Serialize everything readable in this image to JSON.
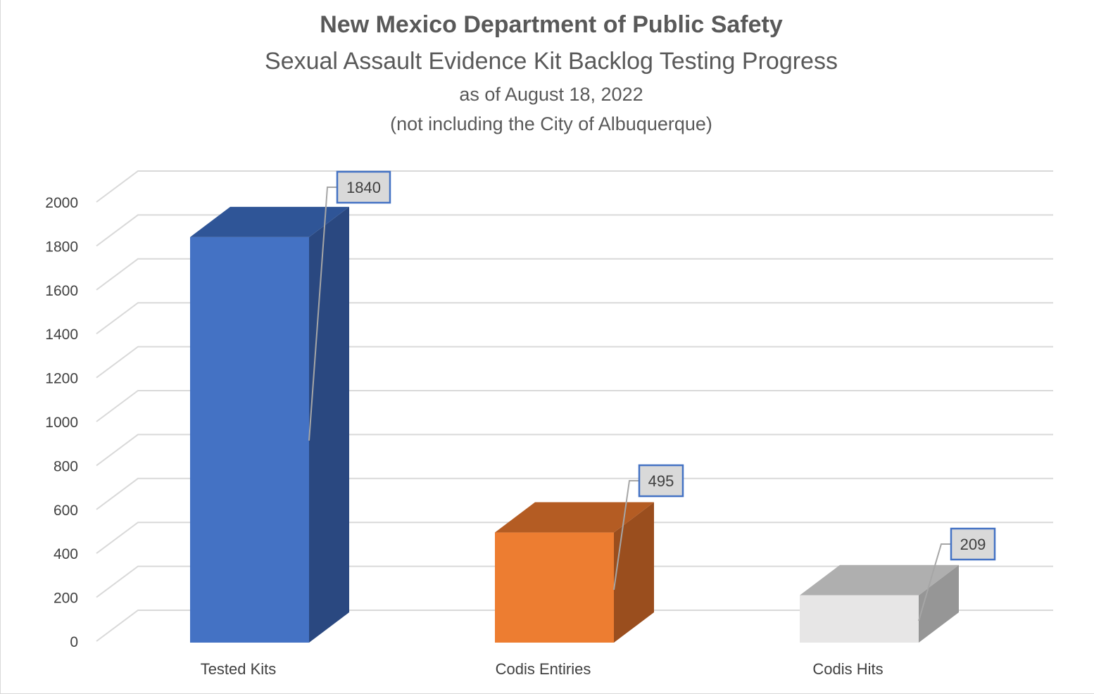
{
  "chart_data": {
    "type": "bar",
    "title": "New Mexico Department of Public Safety",
    "subtitle": "Sexual Assault Evidence Kit Backlog Testing Progress",
    "date_line": "as of August 18, 2022",
    "note_line": "(not including the City of Albuquerque)",
    "categories": [
      "Tested Kits",
      "Codis Entiries",
      "Codis Hits"
    ],
    "values": [
      1840,
      495,
      209
    ],
    "data_labels": [
      "1840",
      "495",
      "209"
    ],
    "ylim": [
      0,
      2000
    ],
    "yticks": [
      0,
      200,
      400,
      600,
      800,
      1000,
      1200,
      1400,
      1600,
      1800,
      2000
    ],
    "ytick_labels": [
      "0",
      "200",
      "400",
      "600",
      "800",
      "1000",
      "1200",
      "1400",
      "1600",
      "1800",
      "2000"
    ],
    "xlabel": "",
    "ylabel": "",
    "grid": true,
    "legend": "none",
    "style": "3d-column",
    "colors": {
      "bars": [
        {
          "front": "#4472c4",
          "top": "#2f5597",
          "side": "#2a4880"
        },
        {
          "front": "#ed7d31",
          "top": "#b45c23",
          "side": "#9a4e1e"
        },
        {
          "front": "#e7e6e6",
          "top": "#afafaf",
          "side": "#969696"
        }
      ],
      "grid": "#d9d9d9",
      "label_border": "#4472c4",
      "label_fill": "#d9d9d9",
      "leader": "#a6a6a6"
    }
  }
}
